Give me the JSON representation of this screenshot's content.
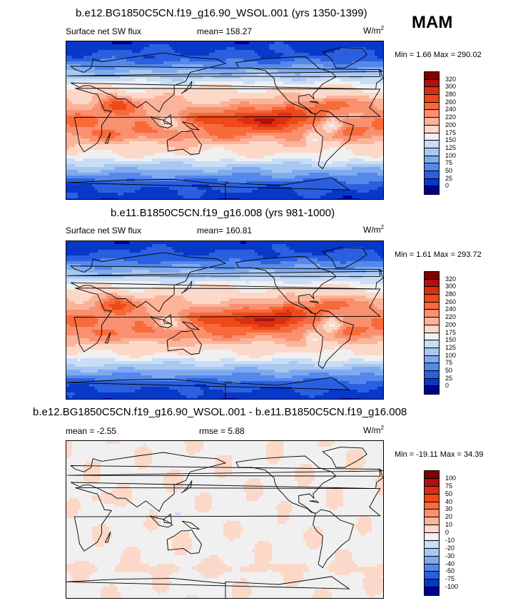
{
  "season": "MAM",
  "panels": [
    {
      "title": "b.e12.BG1850C5CN.f19_g16.90_WSOL.001 (yrs 1350-1399)",
      "left_label": "Surface net SW flux",
      "center_label": "mean= 158.27",
      "units": "W/m",
      "units_sup": "2",
      "minmax": "Min =   1.66 Max = 290.02",
      "colorbar_labels": [
        "320",
        "300",
        "280",
        "260",
        "240",
        "220",
        "200",
        "175",
        "150",
        "125",
        "100",
        "75",
        "50",
        "25",
        "0"
      ],
      "type": "abs"
    },
    {
      "title": "b.e11.B1850C5CN.f19_g16.008 (yrs 981-1000)",
      "left_label": "Surface net SW flux",
      "center_label": "mean= 160.81",
      "units": "W/m",
      "units_sup": "2",
      "minmax": "Min =   1.61 Max = 293.72",
      "colorbar_labels": [
        "320",
        "300",
        "280",
        "260",
        "240",
        "220",
        "200",
        "175",
        "150",
        "125",
        "100",
        "75",
        "50",
        "25",
        "0"
      ],
      "type": "abs"
    },
    {
      "title": "b.e12.BG1850C5CN.f19_g16.90_WSOL.001 - b.e11.B1850C5CN.f19_g16.008",
      "left_label": "mean =  -2.55",
      "center_label": "rmse =   5.88",
      "units": "W/m",
      "units_sup": "2",
      "minmax": "Min = -19.11 Max =  34.39",
      "colorbar_labels": [
        "100",
        "75",
        "50",
        "40",
        "30",
        "20",
        "10",
        "0",
        "-10",
        "-20",
        "-30",
        "-40",
        "-50",
        "-75",
        "-100"
      ],
      "type": "diff"
    }
  ],
  "colors": {
    "abs_scale": [
      "#800000",
      "#b01010",
      "#d83010",
      "#f04818",
      "#f86a3a",
      "#f99070",
      "#fbb49a",
      "#fcd8c8",
      "#f0f0f0",
      "#c8ddf8",
      "#a8c8f0",
      "#80aaf0",
      "#5488ea",
      "#2a60e0",
      "#0838c8",
      "#000090"
    ],
    "diff_scale": [
      "#800000",
      "#b01010",
      "#d83010",
      "#f04818",
      "#f86a3a",
      "#f99070",
      "#fbb49a",
      "#fcd8c8",
      "#f0f0f0",
      "#c8ddf8",
      "#a8c8f0",
      "#80aaf0",
      "#5488ea",
      "#2a60e0",
      "#0838c8",
      "#000090"
    ]
  }
}
